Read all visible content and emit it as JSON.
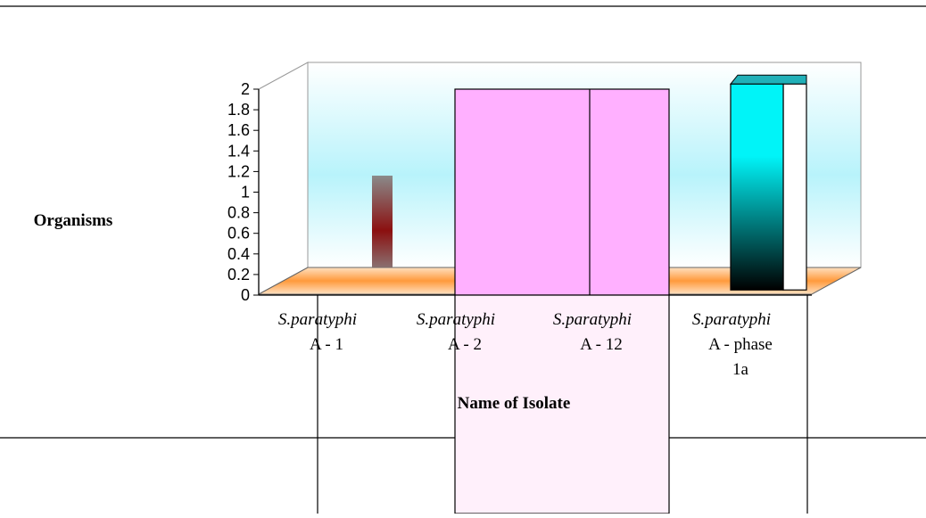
{
  "chart_data": {
    "type": "bar",
    "xlabel": "Name of Isolate",
    "ylabel": "Organisms",
    "ylim": [
      0,
      2
    ],
    "yticks": [
      "0",
      "0.2",
      "0.4",
      "0.6",
      "0.8",
      "1",
      "1.2",
      "1.4",
      "1.6",
      "1.8",
      "2"
    ],
    "categories": [
      {
        "species": "S.paratyphi",
        "serotype": "A - 1",
        "extra": ""
      },
      {
        "species": "S.paratyphi",
        "serotype": "A - 2",
        "extra": ""
      },
      {
        "species": "S.paratyphi",
        "serotype": "A - 12",
        "extra": ""
      },
      {
        "species": "S.paratyphi",
        "serotype": "A - phase",
        "extra": "1a"
      }
    ],
    "bars": [
      {
        "category": "A - 1",
        "bottom": 0.27,
        "top": 1.16,
        "color": "#8b1010"
      },
      {
        "category": "A - 2 / A - 12",
        "bottom": 0,
        "top": 2,
        "color": "#ffb0ff"
      },
      {
        "category": "A - phase 1a",
        "bottom": 0.05,
        "top": 2.05,
        "color": "#00e8f0"
      }
    ],
    "grid": false,
    "legend": "none",
    "colors": {
      "wall_top": "#ffffff",
      "wall_mid": "#b8f3fb",
      "floor": "#ff9a3c",
      "bar_pink": "#ffb0ff",
      "bar_red": "#8b1010",
      "bar_cyan": "#00e8f0"
    }
  }
}
